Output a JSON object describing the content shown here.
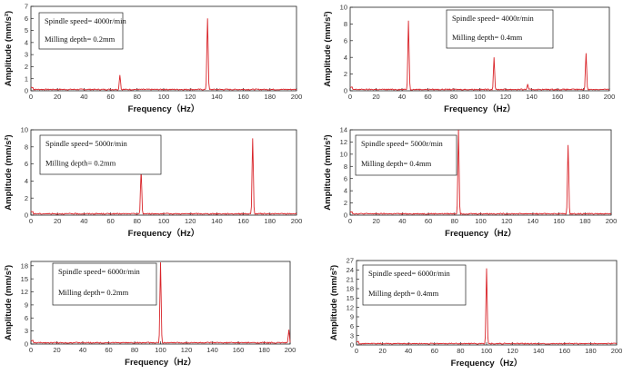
{
  "chart_data": [
    {
      "type": "line",
      "xlabel": "Frequency（Hz）",
      "ylabel": "Amplitude (mm/s²)",
      "xlim": [
        0,
        200
      ],
      "ylim": [
        0,
        7
      ],
      "xticks": [
        "0",
        "20",
        "40",
        "60",
        "80",
        "100",
        "120",
        "140",
        "160",
        "180",
        "200"
      ],
      "yticks": [
        "0",
        "1",
        "2",
        "3",
        "4",
        "5",
        "6",
        "7"
      ],
      "annotation": [
        "Spindle speed= 4000r/min",
        "Milling depth= 0.2mm"
      ],
      "peaks": [
        {
          "x": 67,
          "y": 1.3
        },
        {
          "x": 133,
          "y": 6.0
        }
      ],
      "color": "#d9252a"
    },
    {
      "type": "line",
      "xlabel": "Frequency（Hz）",
      "ylabel": "Amplitude (mm/s²)",
      "xlim": [
        0,
        200
      ],
      "ylim": [
        0,
        10
      ],
      "xticks": [
        "0",
        "20",
        "40",
        "60",
        "80",
        "100",
        "120",
        "140",
        "160",
        "180",
        "200"
      ],
      "yticks": [
        "0",
        "2",
        "4",
        "6",
        "8",
        "10"
      ],
      "annotation": [
        "Spindle speed= 4000r/min",
        "Milling depth= 0.4mm"
      ],
      "peaks": [
        {
          "x": 45,
          "y": 8.4
        },
        {
          "x": 111,
          "y": 4.0
        },
        {
          "x": 137,
          "y": 0.8
        },
        {
          "x": 182,
          "y": 4.5
        }
      ],
      "color": "#d9252a"
    },
    {
      "type": "line",
      "xlabel": "Frequency（Hz）",
      "ylabel": "Amplitude (mm/s²)",
      "xlim": [
        0,
        200
      ],
      "ylim": [
        0,
        10
      ],
      "xticks": [
        "0",
        "20",
        "40",
        "60",
        "80",
        "100",
        "120",
        "140",
        "160",
        "180",
        "200"
      ],
      "yticks": [
        "0",
        "2",
        "4",
        "6",
        "8",
        "10"
      ],
      "annotation": [
        "Spindle speed= 5000r/min",
        "Milling depth= 0.2mm"
      ],
      "peaks": [
        {
          "x": 83,
          "y": 5.3
        },
        {
          "x": 167,
          "y": 9.0
        }
      ],
      "color": "#d9252a"
    },
    {
      "type": "line",
      "xlabel": "Frequency（Hz）",
      "ylabel": "Amplitude (mm/s²)",
      "xlim": [
        0,
        200
      ],
      "ylim": [
        0,
        14
      ],
      "xticks": [
        "0",
        "20",
        "40",
        "60",
        "80",
        "100",
        "120",
        "140",
        "160",
        "180",
        "200"
      ],
      "yticks": [
        "0",
        "2",
        "4",
        "6",
        "8",
        "10",
        "12",
        "14"
      ],
      "annotation": [
        "Spindle speed= 5000r/min",
        "Milling depth= 0.4mm"
      ],
      "peaks": [
        {
          "x": 83,
          "y": 14.0
        },
        {
          "x": 167,
          "y": 11.5
        }
      ],
      "color": "#d9252a"
    },
    {
      "type": "line",
      "xlabel": "Frequency（Hz）",
      "ylabel": "Amplitude (mm/s²)",
      "xlim": [
        0,
        200
      ],
      "ylim": [
        0,
        19
      ],
      "xticks": [
        "0",
        "20",
        "40",
        "60",
        "80",
        "100",
        "120",
        "140",
        "160",
        "180",
        "200"
      ],
      "yticks": [
        "0",
        "3",
        "6",
        "9",
        "12",
        "15",
        "18"
      ],
      "annotation": [
        "Spindle speed= 6000r/min",
        "Milling depth= 0.2mm"
      ],
      "peaks": [
        {
          "x": 100,
          "y": 18.8
        },
        {
          "x": 199,
          "y": 3.3
        }
      ],
      "color": "#d9252a"
    },
    {
      "type": "line",
      "xlabel": "Frequency（Hz）",
      "ylabel": "Amplitude (mm/s²)",
      "xlim": [
        0,
        200
      ],
      "ylim": [
        0,
        27
      ],
      "xticks": [
        "0",
        "20",
        "40",
        "60",
        "80",
        "100",
        "120",
        "140",
        "160",
        "180",
        "200"
      ],
      "yticks": [
        "0",
        "3",
        "6",
        "9",
        "12",
        "15",
        "18",
        "21",
        "24",
        "27"
      ],
      "annotation": [
        "Spindle speed= 6000r/min",
        "Milling depth= 0.4mm"
      ],
      "peaks": [
        {
          "x": 100,
          "y": 24.5
        }
      ],
      "color": "#d9252a"
    }
  ]
}
